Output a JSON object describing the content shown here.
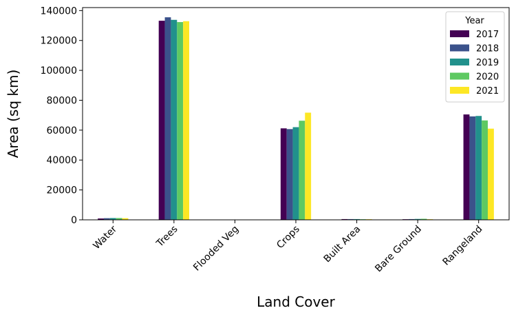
{
  "chart_data": {
    "type": "bar",
    "xlabel": "Land Cover",
    "ylabel": "Area (sq km)",
    "ylim": [
      0,
      142000
    ],
    "yticks": [
      0,
      20000,
      40000,
      60000,
      80000,
      100000,
      120000,
      140000
    ],
    "ytick_labels": [
      "0",
      "20000",
      "40000",
      "60000",
      "80000",
      "100000",
      "120000",
      "140000"
    ],
    "categories": [
      "Water",
      "Trees",
      "Flooded Veg",
      "Crops",
      "Built Area",
      "Bare Ground",
      "Rangeland"
    ],
    "legend": {
      "title": "Year",
      "position": "top-right"
    },
    "grid": false,
    "series": [
      {
        "name": "2017",
        "color": "#440154",
        "values": [
          900,
          133200,
          100,
          61200,
          500,
          400,
          70500
        ]
      },
      {
        "name": "2018",
        "color": "#3b528b",
        "values": [
          1100,
          135500,
          100,
          60700,
          500,
          500,
          69200
        ]
      },
      {
        "name": "2019",
        "color": "#21918c",
        "values": [
          1200,
          133800,
          200,
          62000,
          500,
          600,
          69500
        ]
      },
      {
        "name": "2020",
        "color": "#5ec962",
        "values": [
          1200,
          132300,
          200,
          66300,
          400,
          700,
          66500
        ]
      },
      {
        "name": "2021",
        "color": "#fde725",
        "values": [
          1100,
          132900,
          100,
          71700,
          400,
          400,
          61000
        ]
      }
    ]
  }
}
